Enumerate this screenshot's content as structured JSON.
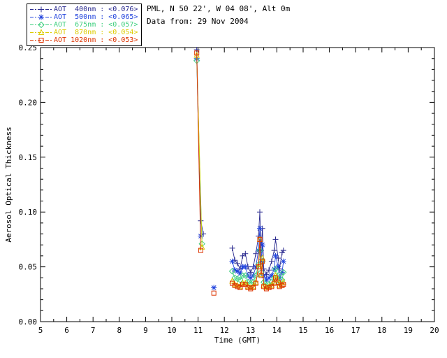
{
  "header": {
    "line1": "PML, N 50 22', W 04 08', Alt 0m",
    "line2": "Data from: 29 Nov 2004"
  },
  "chart_data": {
    "type": "line",
    "title": "",
    "xlabel": "Time (GMT)",
    "ylabel": "Aerosol Optical Thickness",
    "xlim": [
      5,
      20
    ],
    "ylim": [
      0.0,
      0.25
    ],
    "grid": false,
    "legend_position": "top-left-outside",
    "xticks": [
      5,
      6,
      7,
      8,
      9,
      10,
      11,
      12,
      13,
      14,
      15,
      16,
      17,
      18,
      19,
      20
    ],
    "xtick_labels": [
      "5",
      "6",
      "7",
      "8",
      "9",
      "10",
      "11",
      "12",
      "13",
      "14",
      "15",
      "16",
      "17",
      "18",
      "19",
      "20"
    ],
    "yticks": [
      0.0,
      0.05,
      0.1,
      0.15,
      0.2,
      0.25
    ],
    "ytick_labels": [
      "0.00",
      "0.05",
      "0.10",
      "0.15",
      "0.20",
      "0.25"
    ],
    "series": [
      {
        "id": "aot-400nm",
        "label": "AOT  400nm : <0.076>",
        "mean": "<0.076>",
        "color": "#2a2a8f",
        "symbol": "plus",
        "x": [
          10.95,
          11.1,
          11.2,
          11.5,
          12.3,
          12.4,
          12.5,
          12.6,
          12.7,
          12.8,
          12.9,
          13.0,
          13.1,
          13.2,
          13.3,
          13.35,
          13.4,
          13.45,
          13.5,
          13.6,
          13.7,
          13.8,
          13.9,
          13.95,
          14.05,
          14.1,
          14.2,
          14.25
        ],
        "y": [
          0.248,
          0.092,
          0.08,
          null,
          0.067,
          0.056,
          0.053,
          0.048,
          0.06,
          0.062,
          0.05,
          0.045,
          0.05,
          0.062,
          0.078,
          0.1,
          0.065,
          0.085,
          0.048,
          0.043,
          0.047,
          0.055,
          0.065,
          0.075,
          0.058,
          0.048,
          0.063,
          0.065
        ]
      },
      {
        "id": "aot-500nm",
        "label": "AOT  500nm : <0.065>",
        "mean": "<0.065>",
        "color": "#2244dd",
        "symbol": "asterisk",
        "x": [
          10.95,
          11.1,
          11.3,
          11.6,
          11.8,
          12.3,
          12.4,
          12.5,
          12.6,
          12.7,
          12.8,
          12.9,
          13.0,
          13.1,
          13.2,
          13.3,
          13.35,
          13.4,
          13.45,
          13.5,
          13.6,
          13.7,
          13.8,
          13.9,
          13.95,
          14.05,
          14.1,
          14.2,
          14.25
        ],
        "y": [
          0.24,
          0.078,
          null,
          0.031,
          null,
          0.055,
          0.047,
          0.046,
          0.044,
          0.05,
          0.05,
          0.042,
          0.04,
          0.042,
          0.05,
          0.065,
          0.085,
          0.055,
          0.07,
          0.042,
          0.038,
          0.04,
          0.042,
          0.048,
          0.06,
          0.05,
          0.04,
          0.045,
          0.055
        ]
      },
      {
        "id": "aot-675nm",
        "label": "AOT  675nm : <0.057>",
        "mean": "<0.057>",
        "color": "#3fcf7f",
        "symbol": "diamond",
        "x": [
          10.95,
          11.15,
          11.9,
          12.3,
          12.4,
          12.5,
          12.6,
          12.7,
          12.8,
          12.9,
          13.0,
          13.1,
          13.2,
          13.3,
          13.35,
          13.4,
          13.45,
          13.5,
          13.6,
          13.7,
          13.8,
          13.9,
          13.95,
          14.05,
          14.1,
          14.2,
          14.25
        ],
        "y": [
          0.238,
          0.071,
          null,
          0.046,
          0.04,
          0.039,
          0.038,
          0.042,
          0.042,
          0.036,
          0.035,
          0.036,
          0.042,
          0.052,
          0.065,
          0.045,
          0.055,
          0.036,
          0.033,
          0.034,
          0.036,
          0.04,
          0.048,
          0.042,
          0.035,
          0.038,
          0.045
        ]
      },
      {
        "id": "aot-870nm",
        "label": "AOT  870nm : <0.054>",
        "mean": "<0.054>",
        "color": "#ddcc00",
        "symbol": "triangle",
        "x": [
          10.95,
          11.15,
          11.9,
          12.3,
          12.4,
          12.5,
          12.6,
          12.7,
          12.8,
          12.9,
          13.0,
          13.1,
          13.2,
          13.3,
          13.35,
          13.4,
          13.45,
          13.5,
          13.6,
          13.7,
          13.8,
          13.9,
          13.95,
          14.05,
          14.1,
          14.2,
          14.25
        ],
        "y": [
          0.243,
          0.068,
          null,
          0.037,
          0.034,
          0.033,
          0.032,
          0.035,
          0.035,
          0.032,
          0.031,
          0.032,
          0.036,
          0.05,
          0.075,
          0.043,
          0.058,
          0.033,
          0.031,
          0.032,
          0.033,
          0.036,
          0.042,
          0.038,
          0.033,
          0.034,
          0.036
        ]
      },
      {
        "id": "aot-1020nm",
        "label": "AOT 1020nm : <0.053>",
        "mean": "<0.053>",
        "color": "#dd3300",
        "symbol": "square",
        "x": [
          10.95,
          11.1,
          11.3,
          11.6,
          11.9,
          12.3,
          12.4,
          12.5,
          12.6,
          12.7,
          12.8,
          12.9,
          13.0,
          13.1,
          13.2,
          13.3,
          13.35,
          13.4,
          13.45,
          13.5,
          13.6,
          13.7,
          13.8,
          13.9,
          13.95,
          14.05,
          14.1,
          14.2,
          14.25
        ],
        "y": [
          0.245,
          0.065,
          null,
          0.026,
          null,
          0.035,
          0.033,
          0.032,
          0.031,
          0.034,
          0.034,
          0.031,
          0.03,
          0.031,
          0.035,
          0.05,
          0.075,
          0.042,
          0.055,
          0.032,
          0.03,
          0.031,
          0.032,
          0.035,
          0.04,
          0.036,
          0.032,
          0.033,
          0.034
        ]
      }
    ]
  }
}
